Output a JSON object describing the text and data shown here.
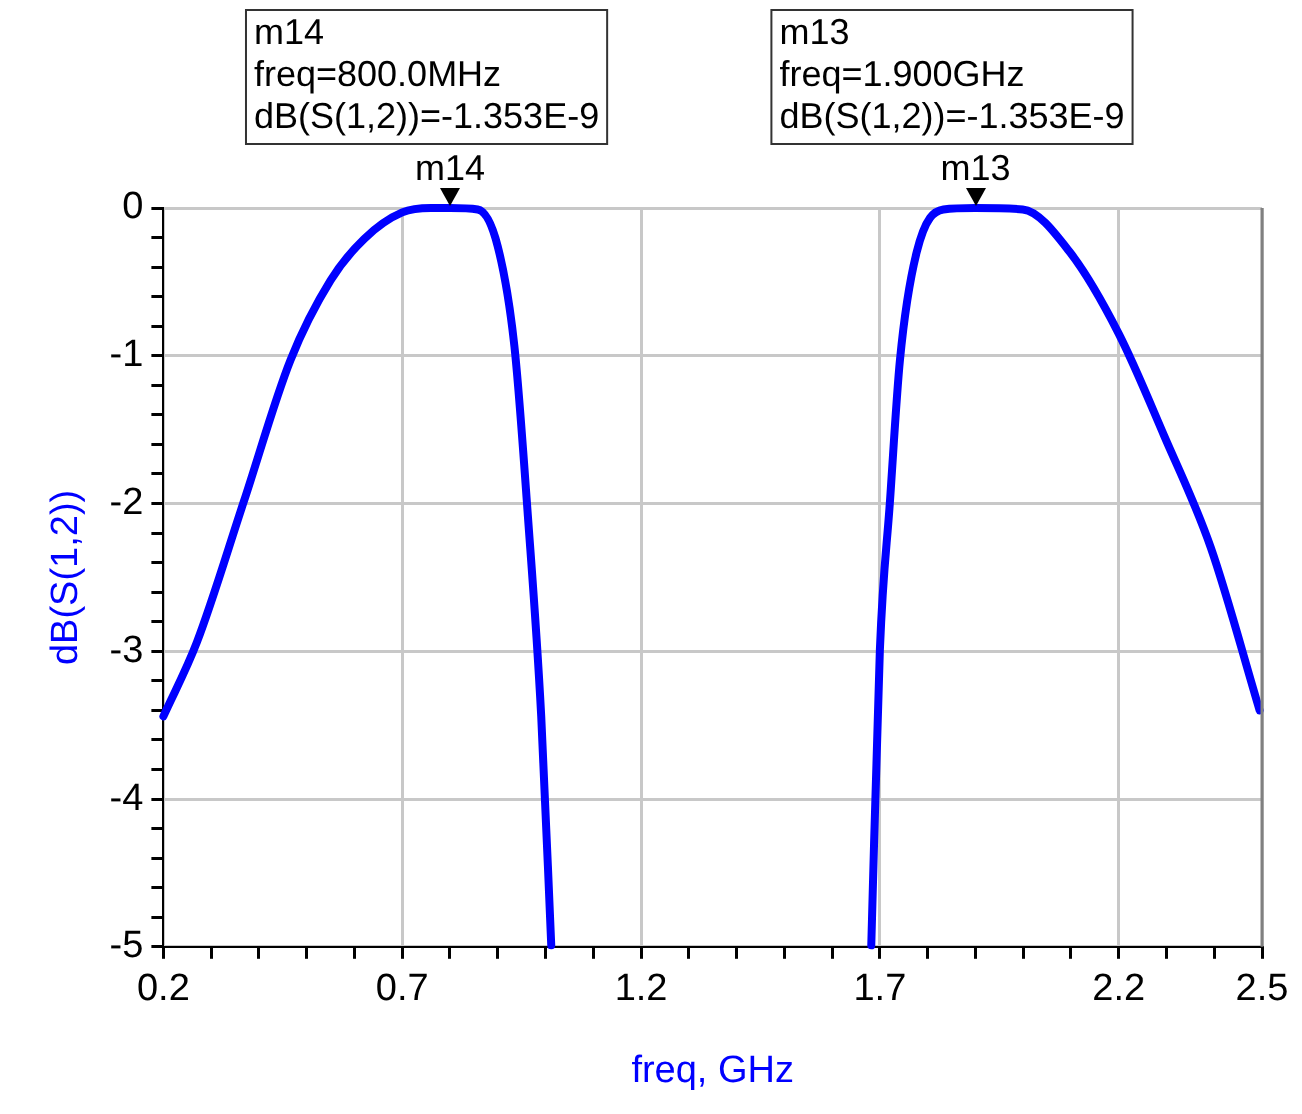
{
  "chart_data": {
    "type": "line",
    "xlabel": "freq, GHz",
    "ylabel": "dB(S(1,2))",
    "xlim": [
      0.2,
      2.5
    ],
    "xticks": [
      0.2,
      {
        "value": 0.3,
        "label": null
      },
      {
        "value": 0.4,
        "label": null
      },
      {
        "value": 0.5,
        "label": null
      },
      {
        "value": 0.6,
        "label": null
      },
      0.7,
      {
        "value": 0.8,
        "label": null
      },
      {
        "value": 0.9,
        "label": null
      },
      {
        "value": 1.0,
        "label": null
      },
      {
        "value": 1.1,
        "label": null
      },
      1.2,
      {
        "value": 1.3,
        "label": null
      },
      {
        "value": 1.4,
        "label": null
      },
      {
        "value": 1.5,
        "label": null
      },
      {
        "value": 1.6,
        "label": null
      },
      1.7,
      {
        "value": 1.8,
        "label": null
      },
      {
        "value": 1.9,
        "label": null
      },
      {
        "value": 2.0,
        "label": null
      },
      {
        "value": 2.1,
        "label": null
      },
      2.2,
      {
        "value": 2.3,
        "label": null
      },
      {
        "value": 2.4,
        "label": null
      },
      2.5
    ],
    "ylim": [
      -5,
      0
    ],
    "yticks": [
      -5,
      {
        "value": -4.8,
        "label": null
      },
      {
        "value": -4.6,
        "label": null
      },
      {
        "value": -4.4,
        "label": null
      },
      {
        "value": -4.2,
        "label": null
      },
      -4,
      {
        "value": -3.8,
        "label": null
      },
      {
        "value": -3.6,
        "label": null
      },
      {
        "value": -3.4,
        "label": null
      },
      {
        "value": -3.2,
        "label": null
      },
      -3,
      {
        "value": -2.8,
        "label": null
      },
      {
        "value": -2.6,
        "label": null
      },
      {
        "value": -2.4,
        "label": null
      },
      {
        "value": -2.2,
        "label": null
      },
      -2,
      {
        "value": -1.8,
        "label": null
      },
      {
        "value": -1.6,
        "label": null
      },
      {
        "value": -1.4,
        "label": null
      },
      {
        "value": -1.2,
        "label": null
      },
      -1,
      {
        "value": -0.8,
        "label": null
      },
      {
        "value": -0.6,
        "label": null
      },
      {
        "value": -0.4,
        "label": null
      },
      {
        "value": -0.2,
        "label": null
      },
      0
    ],
    "grid": true,
    "legend": false,
    "marker": "none",
    "line_style": "solid",
    "series": [
      {
        "color": "#0000ff",
        "x": [
          0.2,
          0.27,
          0.368,
          0.466,
          0.55,
          0.62,
          0.7,
          0.76,
          0.8,
          0.858,
          0.9,
          0.935,
          0.963,
          0.991,
          1.012,
          1.35,
          1.682,
          1.7,
          1.721,
          1.742,
          1.777,
          1.833,
          1.9,
          1.999,
          2.098,
          2.2,
          2.295,
          2.393,
          2.495
        ],
        "values": [
          -3.44,
          -2.94,
          -1.99,
          -1.03,
          -0.49,
          -0.21,
          -0.03,
          0,
          0,
          -0.01,
          -0.26,
          -0.94,
          -2.08,
          -3.44,
          -4.99,
          null,
          -4.99,
          -2.99,
          -1.99,
          -1.03,
          -0.3,
          -0.01,
          0,
          -0.01,
          -0.3,
          -0.85,
          -1.54,
          -2.3,
          -3.4
        ]
      }
    ],
    "annotations": [
      {
        "text": "m14",
        "x": 0.8,
        "y": 0
      },
      {
        "text": "m13",
        "x": 1.9,
        "y": 0
      },
      "m14\nfreq=800.0MHz\ndB(S(1,2))=-1.353E-9",
      "m13\nfreq=1.900GHz\ndB(S(1,2))=-1.353E-9"
    ]
  }
}
